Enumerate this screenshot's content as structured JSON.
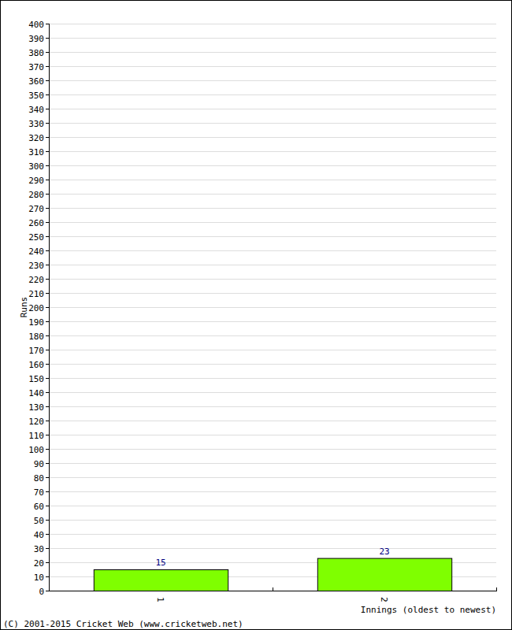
{
  "chart_data": {
    "type": "bar",
    "categories": [
      "1",
      "2"
    ],
    "values": [
      15,
      23
    ],
    "color": "#7fff00",
    "x_label": "Innings (oldest to newest)",
    "y_label": "Runs",
    "annotation": "(C) 2001-2015 Cricket Web (www.cricketweb.net)",
    "ylim": [
      0,
      400
    ],
    "yticks": [
      0,
      10,
      20,
      30,
      40,
      50,
      60,
      70,
      80,
      90,
      100,
      110,
      120,
      130,
      140,
      150,
      160,
      170,
      180,
      190,
      200,
      210,
      220,
      230,
      240,
      250,
      260,
      270,
      280,
      290,
      300,
      310,
      320,
      330,
      340,
      350,
      360,
      370,
      380,
      390,
      400
    ],
    "grid": true,
    "data_labels": true
  }
}
